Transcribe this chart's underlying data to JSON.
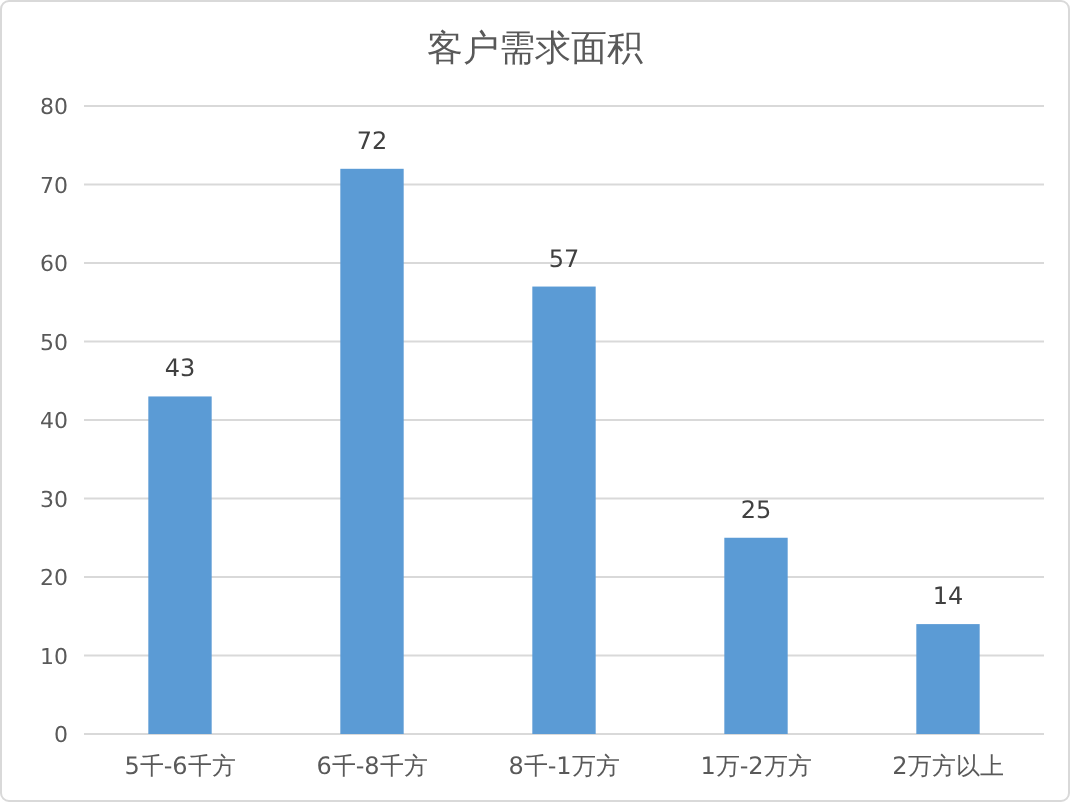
{
  "chart_data": {
    "type": "bar",
    "title": "客户需求面积",
    "categories": [
      "5千-6千方",
      "6千-8千方",
      "8千-1万方",
      "1万-2万方",
      "2万方以上"
    ],
    "values": [
      43,
      72,
      57,
      25,
      14
    ],
    "color": "#5b9bd5",
    "ylim": [
      0,
      80
    ],
    "yticks": [
      0,
      10,
      20,
      30,
      40,
      50,
      60,
      70,
      80
    ],
    "grid": "y",
    "data_labels": true
  }
}
